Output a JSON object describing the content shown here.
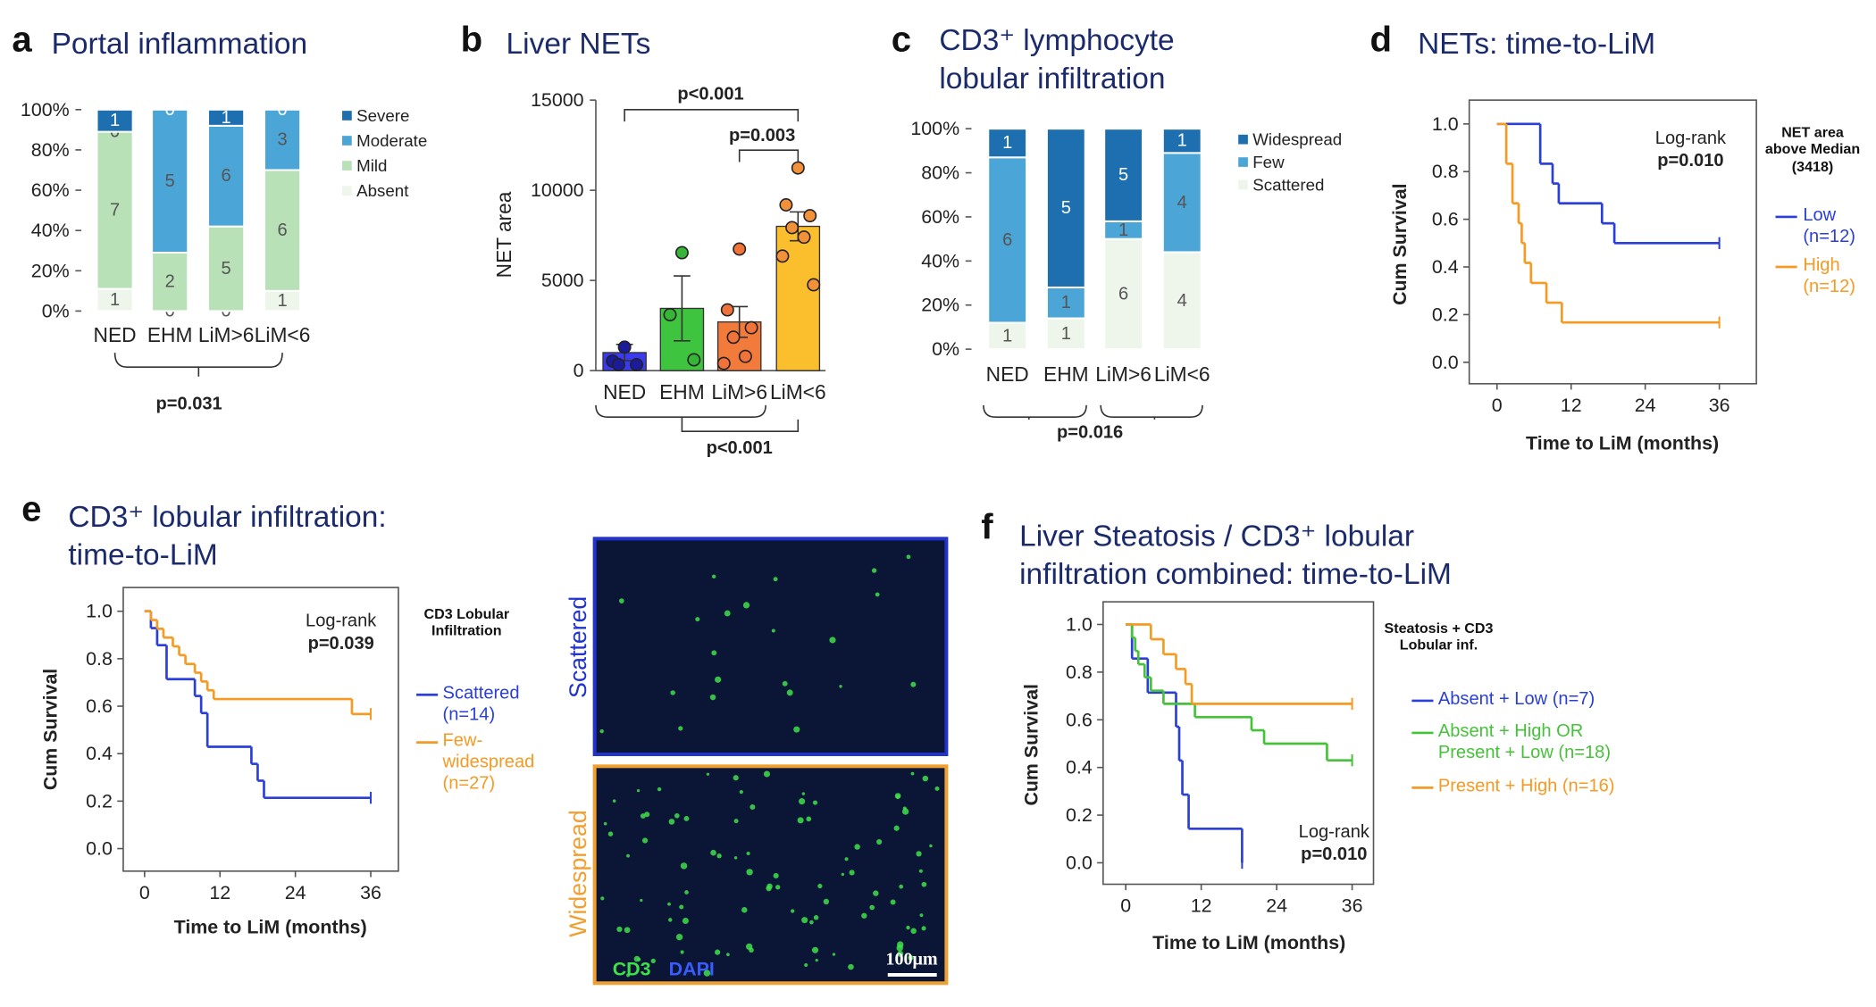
{
  "chart_data": [
    {
      "panel": "a",
      "type": "bar",
      "stacked": true,
      "title": "Portal inflammation",
      "categories": [
        "NED",
        "EHM",
        "LiM>6",
        "LiM<6"
      ],
      "series": [
        {
          "name": "Absent",
          "color": "#eef6ec",
          "values": [
            11,
            0,
            0,
            10
          ],
          "counts": [
            1,
            0,
            0,
            1
          ]
        },
        {
          "name": "Mild",
          "color": "#b8e1b8",
          "values": [
            78,
            29,
            42,
            60
          ],
          "counts": [
            7,
            2,
            5,
            6
          ]
        },
        {
          "name": "Moderate",
          "color": "#4ba5d6",
          "values": [
            0,
            71,
            50,
            30
          ],
          "counts": [
            0,
            5,
            6,
            3
          ]
        },
        {
          "name": "Severe",
          "color": "#1e6faf",
          "values": [
            11,
            0,
            8,
            0
          ],
          "counts": [
            1,
            0,
            1,
            0
          ]
        }
      ],
      "ylim": [
        0,
        100
      ],
      "yticks": [
        {
          "value": 0,
          "label": "0%"
        },
        {
          "value": 20,
          "label": "20%"
        },
        {
          "value": 40,
          "label": "40%"
        },
        {
          "value": 60,
          "label": "60%"
        },
        {
          "value": 80,
          "label": "80%"
        },
        {
          "value": 100,
          "label": "100%"
        }
      ],
      "annotations": [
        "p=0.031"
      ]
    },
    {
      "panel": "b",
      "type": "bar",
      "stacked": false,
      "title": "Liver NETs",
      "y_label": "NET area",
      "categories": [
        "NED",
        "EHM",
        "LiM>6",
        "LiM<6"
      ],
      "values": [
        1000,
        3450,
        2700,
        8000
      ],
      "errors": [
        450,
        1800,
        850,
        800
      ],
      "colors": [
        "#3a3af0",
        "#3ec43e",
        "#f27a3a",
        "#fbbf2e"
      ],
      "point_colors": [
        "#1b1b9c",
        "#36b536",
        "#f0733a",
        "#f3903a"
      ],
      "points": [
        [
          1300,
          530,
          330,
          330
        ],
        [
          6540,
          3100,
          600
        ],
        [
          6740,
          3370,
          2380,
          1850,
          790,
          400
        ],
        [
          11240,
          9190,
          8590,
          7930,
          7400,
          6350,
          4760
        ]
      ],
      "ylim": [
        0,
        15000
      ],
      "yticks": [
        0,
        5000,
        10000,
        15000
      ],
      "annotations": [
        "p<0.001",
        "p=0.003",
        "p<0.001"
      ]
    },
    {
      "panel": "c",
      "type": "bar",
      "stacked": true,
      "title": "CD3⁺ lymphocyte lobular infiltration",
      "categories": [
        "NED",
        "EHM",
        "LiM>6",
        "LiM<6"
      ],
      "series": [
        {
          "name": "Scattered",
          "color": "#eef6ec",
          "values": [
            12,
            14,
            50,
            44
          ],
          "counts": [
            1,
            1,
            6,
            4
          ]
        },
        {
          "name": "Few",
          "color": "#4ba5d6",
          "values": [
            75,
            14,
            8,
            45
          ],
          "counts": [
            6,
            1,
            1,
            4
          ]
        },
        {
          "name": "Widespread",
          "color": "#1e6faf",
          "values": [
            13,
            72,
            42,
            11
          ],
          "counts": [
            1,
            5,
            5,
            1
          ]
        }
      ],
      "ylim": [
        0,
        100
      ],
      "yticks": [
        {
          "value": 0,
          "label": "0%"
        },
        {
          "value": 20,
          "label": "20%"
        },
        {
          "value": 40,
          "label": "40%"
        },
        {
          "value": 60,
          "label": "60%"
        },
        {
          "value": 80,
          "label": "80%"
        },
        {
          "value": 100,
          "label": "100%"
        }
      ],
      "annotations": [
        "p=0.016"
      ]
    },
    {
      "panel": "d",
      "type": "line",
      "step": true,
      "title": "NETs: time-to-LiM",
      "x_label": "Time to LiM (months)",
      "y_label": "Cum Survival",
      "legend_title": "NET area above Median (3418)",
      "series": [
        {
          "name": "Low (n=12)",
          "color": "#2a3fd8",
          "x": [
            0,
            7,
            9,
            10,
            17,
            19,
            36
          ],
          "values": [
            1,
            0.833,
            0.75,
            0.667,
            0.583,
            0.5,
            0.5
          ]
        },
        {
          "name": "High (n=12)",
          "color": "#f59a23",
          "x": [
            0,
            1.5,
            2.5,
            3.5,
            4,
            4.5,
            5.5,
            8,
            10.5,
            36
          ],
          "values": [
            1,
            0.833,
            0.667,
            0.583,
            0.5,
            0.417,
            0.333,
            0.25,
            0.167,
            0.167
          ]
        }
      ],
      "xlim": [
        -4.5,
        42
      ],
      "ylim": [
        -0.09,
        1.1
      ],
      "xticks": [
        0,
        12,
        24,
        36
      ],
      "yticks": [
        {
          "value": 0,
          "label": "0.0"
        },
        {
          "value": 0.2,
          "label": "0.2"
        },
        {
          "value": 0.4,
          "label": "0.4"
        },
        {
          "value": 0.6,
          "label": "0.6"
        },
        {
          "value": 0.8,
          "label": "0.8"
        },
        {
          "value": 1,
          "label": "1.0"
        }
      ],
      "annotations": [
        "Log-rank",
        "p=0.010"
      ]
    },
    {
      "panel": "e",
      "type": "line",
      "step": true,
      "title": "CD3⁺ lobular infiltration: time-to-LiM",
      "x_label": "Time to LiM (months)",
      "y_label": "Cum Survival",
      "legend_title": "CD3 Lobular Infiltration",
      "series": [
        {
          "name": "Scattered (n=14)",
          "color": "#2a3fd8",
          "x": [
            0,
            1,
            2,
            3.5,
            8,
            9,
            10,
            17,
            18,
            19,
            36
          ],
          "values": [
            1,
            0.929,
            0.857,
            0.714,
            0.643,
            0.571,
            0.429,
            0.357,
            0.286,
            0.214,
            0.214
          ]
        },
        {
          "name": "Few-widespread (n=27)",
          "color": "#f59a23",
          "x": [
            0,
            1,
            2,
            3,
            4.5,
            5.5,
            6.5,
            8,
            9,
            10,
            11,
            33,
            36
          ],
          "values": [
            1,
            0.963,
            0.926,
            0.889,
            0.852,
            0.815,
            0.778,
            0.741,
            0.704,
            0.667,
            0.63,
            0.567,
            0.567
          ]
        }
      ],
      "xlim": [
        -3.4,
        40.4
      ],
      "ylim": [
        -0.095,
        1.1
      ],
      "xticks": [
        0,
        12,
        24,
        36
      ],
      "yticks": [
        {
          "value": 0,
          "label": "0.0"
        },
        {
          "value": 0.2,
          "label": "0.2"
        },
        {
          "value": 0.4,
          "label": "0.4"
        },
        {
          "value": 0.6,
          "label": "0.6"
        },
        {
          "value": 0.8,
          "label": "0.8"
        },
        {
          "value": 1,
          "label": "1.0"
        }
      ],
      "annotations": [
        "Log-rank",
        "p=0.039"
      ],
      "micrograph": {
        "panels": [
          "Scattered",
          "Widespread"
        ],
        "stains": [
          "CD3",
          "DAPI"
        ],
        "scale_bar": "100μm"
      }
    },
    {
      "panel": "f",
      "type": "line",
      "step": true,
      "title": "Liver Steatosis / CD3⁺ lobular infiltration combined: time-to-LiM",
      "x_label": "Time to LiM (months)",
      "y_label": "Cum Survival",
      "legend_title": "Steatosis + CD3 Lobular inf.",
      "series": [
        {
          "name": "Absent + Low (n=7)",
          "color": "#2a3fd8",
          "x": [
            0,
            1,
            3.5,
            8,
            8.5,
            9,
            10,
            18.5
          ],
          "values": [
            1,
            0.857,
            0.714,
            0.571,
            0.429,
            0.286,
            0.143,
            0
          ]
        },
        {
          "name": "Absent + High OR Present + Low (n=18)",
          "color": "#46c23a",
          "x": [
            0,
            1,
            1.5,
            2,
            3,
            4,
            6,
            11,
            20,
            22,
            32,
            36
          ],
          "values": [
            1,
            0.944,
            0.889,
            0.833,
            0.778,
            0.722,
            0.667,
            0.611,
            0.556,
            0.5,
            0.43,
            0.43
          ]
        },
        {
          "name": "Present + High (n=16)",
          "color": "#f59a23",
          "x": [
            0,
            4,
            6,
            8,
            9.5,
            10.5,
            36
          ],
          "values": [
            1,
            0.938,
            0.875,
            0.813,
            0.75,
            0.667,
            0.667
          ]
        }
      ],
      "xlim": [
        -3.6,
        39.4
      ],
      "ylim": [
        -0.09,
        1.095
      ],
      "xticks": [
        0,
        12,
        24,
        36
      ],
      "yticks": [
        {
          "value": 0,
          "label": "0.0"
        },
        {
          "value": 0.2,
          "label": "0.2"
        },
        {
          "value": 0.4,
          "label": "0.4"
        },
        {
          "value": 0.6,
          "label": "0.6"
        },
        {
          "value": 0.8,
          "label": "0.8"
        },
        {
          "value": 1,
          "label": "1.0"
        }
      ],
      "annotations": [
        "Log-rank",
        "p=0.010"
      ]
    }
  ]
}
